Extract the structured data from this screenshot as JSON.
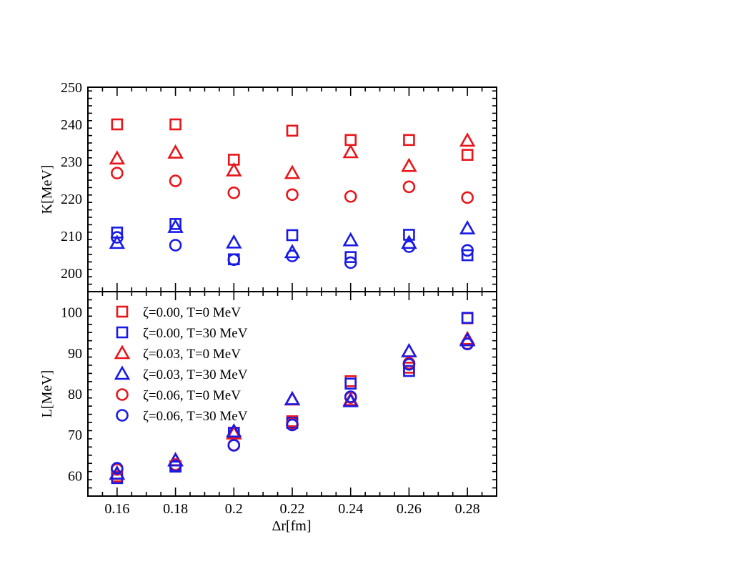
{
  "chart_data": {
    "type": "scatter",
    "xlabel": "Δr[fm]",
    "x": [
      0.16,
      0.18,
      0.2,
      0.22,
      0.24,
      0.26,
      0.28
    ],
    "x_ticks": [
      "0.16",
      "0.18",
      "0.2",
      "0.22",
      "0.24",
      "0.26",
      "0.28"
    ],
    "xlim": [
      0.15,
      0.29
    ],
    "colors": {
      "red": "#e8161b",
      "blue": "#1a1ae6"
    },
    "panels": [
      {
        "id": "K",
        "ylabel": "K[MeV]",
        "ylim": [
          195,
          250
        ],
        "y_ticks": [
          "200",
          "210",
          "220",
          "230",
          "240",
          "250"
        ],
        "series": [
          {
            "name": "ζ=0.00, T=0 MeV",
            "marker": "square",
            "color": "red",
            "values": [
              240.0,
              240.0,
              230.5,
              238.3,
              235.8,
              235.8,
              231.8
            ]
          },
          {
            "name": "ζ=0.00, T=30 MeV",
            "marker": "square",
            "color": "blue",
            "values": [
              210.9,
              213.2,
              203.7,
              210.2,
              204.3,
              210.3,
              204.8
            ]
          },
          {
            "name": "ζ=0.03, T=0 MeV",
            "marker": "triangle",
            "color": "red",
            "values": [
              230.8,
              232.4,
              227.6,
              226.9,
              232.5,
              228.8,
              235.6
            ]
          },
          {
            "name": "ζ=0.03, T=30 MeV",
            "marker": "triangle",
            "color": "blue",
            "values": [
              208.1,
              212.4,
              208.2,
              205.6,
              208.8,
              208.1,
              212.0
            ]
          },
          {
            "name": "ζ=0.06, T=0 MeV",
            "marker": "circle",
            "color": "red",
            "values": [
              226.9,
              224.8,
              221.6,
              221.1,
              220.6,
              223.2,
              220.3
            ]
          },
          {
            "name": "ζ=0.06, T=30 MeV",
            "marker": "circle",
            "color": "blue",
            "values": [
              209.6,
              207.5,
              203.6,
              204.6,
              202.8,
              207.1,
              206.1
            ]
          }
        ]
      },
      {
        "id": "L",
        "ylabel": "L[MeV]",
        "ylim": [
          55,
          105
        ],
        "y_ticks": [
          "60",
          "70",
          "80",
          "90",
          "100"
        ],
        "series": [
          {
            "name": "ζ=0.00, T=0 MeV",
            "marker": "square",
            "color": "red",
            "values": [
              59.8,
              62.3,
              70.5,
              73.3,
              83.1,
              86.4,
              98.5
            ]
          },
          {
            "name": "ζ=0.00, T=30 MeV",
            "marker": "square",
            "color": "blue",
            "values": [
              59.4,
              62.2,
              70.4,
              72.9,
              82.5,
              85.6,
              98.6
            ]
          },
          {
            "name": "ζ=0.03, T=0 MeV",
            "marker": "triangle",
            "color": "red",
            "values": [
              60.4,
              63.8,
              70.3,
              78.6,
              78.5,
              90.4,
              93.4
            ]
          },
          {
            "name": "ζ=0.03, T=30 MeV",
            "marker": "triangle",
            "color": "blue",
            "values": [
              60.5,
              63.7,
              70.8,
              78.7,
              78.2,
              90.4,
              93.1
            ]
          },
          {
            "name": "ζ=0.06, T=0 MeV",
            "marker": "circle",
            "color": "red",
            "values": [
              61.5,
              62.7,
              67.5,
              72.6,
              79.1,
              87.5,
              92.3
            ]
          },
          {
            "name": "ζ=0.06, T=30 MeV",
            "marker": "circle",
            "color": "blue",
            "values": [
              61.8,
              62.4,
              67.4,
              72.4,
              79.3,
              87.2,
              92.2
            ]
          }
        ]
      }
    ],
    "legend": {
      "placement": "top-left of lower panel",
      "entries": [
        {
          "label": "ζ=0.00, T=0 MeV",
          "marker": "square",
          "color": "red"
        },
        {
          "label": "ζ=0.00, T=30 MeV",
          "marker": "square",
          "color": "blue"
        },
        {
          "label": "ζ=0.03, T=0 MeV",
          "marker": "triangle",
          "color": "red"
        },
        {
          "label": "ζ=0.03, T=30 MeV",
          "marker": "triangle",
          "color": "blue"
        },
        {
          "label": "ζ=0.06, T=0 MeV",
          "marker": "circle",
          "color": "red"
        },
        {
          "label": "ζ=0.06, T=30 MeV",
          "marker": "circle",
          "color": "blue"
        }
      ]
    },
    "grid": false
  }
}
